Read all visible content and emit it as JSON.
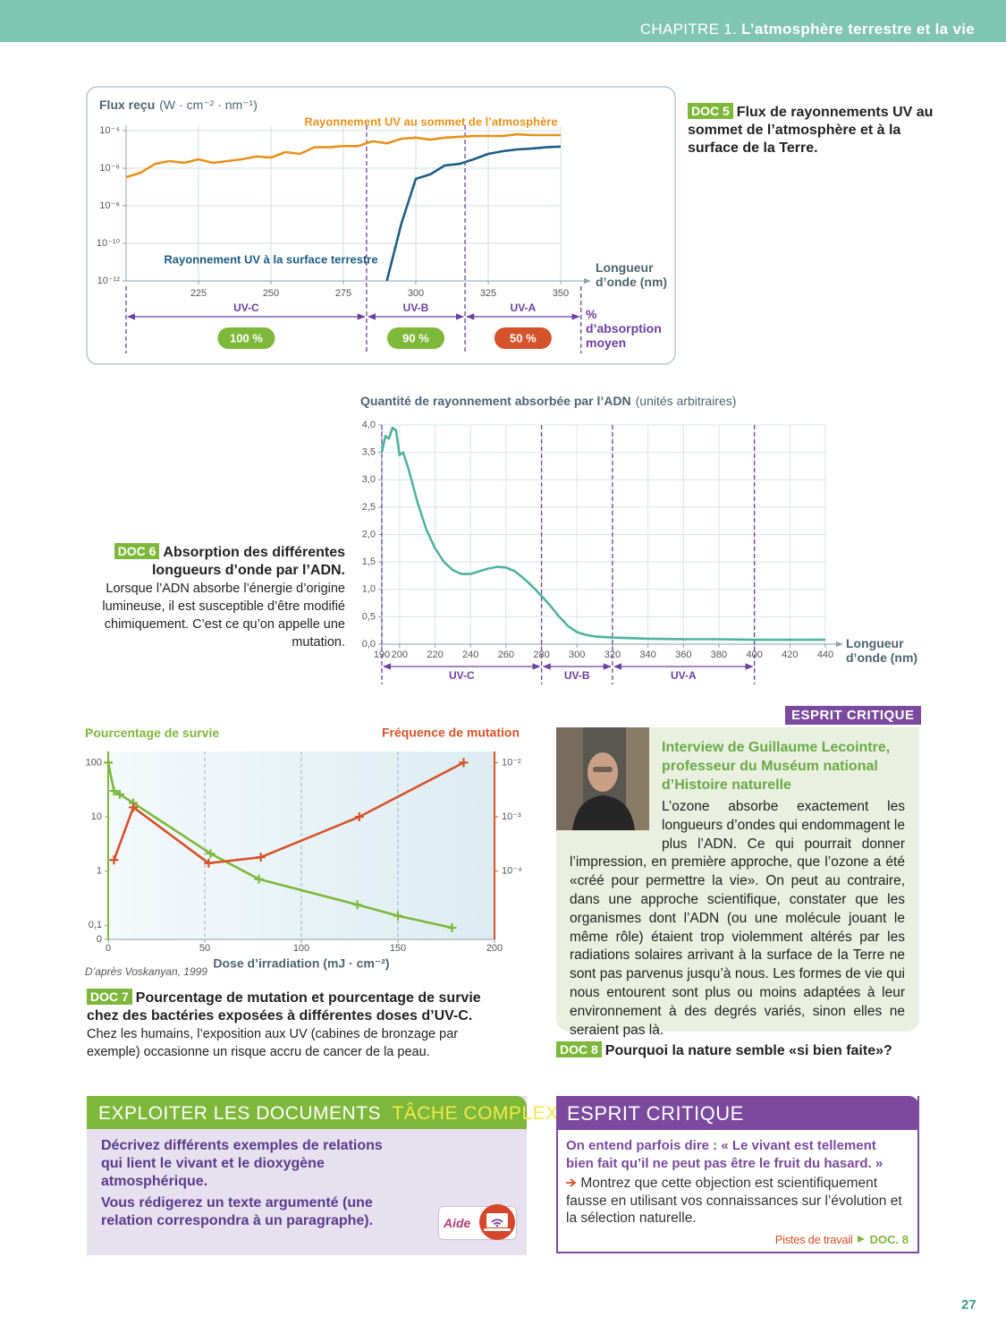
{
  "header": {
    "chapter": "CHAPITRE 1.",
    "title": "L’atmosphère terrestre et la vie"
  },
  "chart_data": [
    {
      "type": "line",
      "y_label": "Flux reçu",
      "y_unit": "(W · cm⁻² · nm⁻¹)",
      "x_label": "Longueur d’onde (nm)",
      "xlim": [
        200,
        350
      ],
      "xticks": [
        225,
        250,
        275,
        300,
        325,
        350
      ],
      "ylog": true,
      "ylim": [
        1e-12,
        0.0001
      ],
      "yticks": [
        {
          "value": 0.0001,
          "label": "10⁻⁴"
        },
        {
          "value": 1e-06,
          "label": "10⁻⁶"
        },
        {
          "value": 1e-08,
          "label": "10⁻⁸"
        },
        {
          "value": 1e-10,
          "label": "10⁻¹⁰"
        },
        {
          "value": 1e-12,
          "label": "10⁻¹²"
        }
      ],
      "grid": true,
      "series": [
        {
          "name": "Rayonnement UV au sommet de l’atmosphère",
          "color": "#e8921c",
          "x": [
            200,
            205,
            210,
            215,
            220,
            225,
            230,
            235,
            240,
            245,
            250,
            255,
            260,
            265,
            270,
            275,
            280,
            285,
            290,
            295,
            300,
            305,
            310,
            315,
            320,
            325,
            330,
            335,
            340,
            345,
            350
          ],
          "values": [
            3.3e-07,
            5.8e-07,
            1.7e-06,
            2.4e-06,
            1.9e-06,
            3e-06,
            1.9e-06,
            2.4e-06,
            3e-06,
            4.2e-06,
            3.7e-06,
            7.2e-06,
            5.8e-06,
            1.3e-05,
            1.3e-05,
            1.5e-05,
            1.5e-05,
            2.7e-05,
            2.1e-05,
            3.7e-05,
            4.2e-05,
            3.3e-05,
            4.2e-05,
            4.7e-05,
            5.2e-05,
            5.2e-05,
            5.2e-05,
            6.4e-05,
            5.8e-05,
            5.8e-05,
            5.8e-05
          ]
        },
        {
          "name": "Rayonnement UV à la surface terrestre",
          "color": "#1d5d85",
          "x": [
            290,
            295,
            300,
            305,
            310,
            315,
            320,
            325,
            330,
            335,
            340,
            345,
            350
          ],
          "values": [
            1e-12,
            1.1e-09,
            2.7e-07,
            4.7e-07,
            1.4e-06,
            1.7e-06,
            3e-06,
            5.8e-06,
            8e-06,
            1e-05,
            1.1e-05,
            1.3e-05,
            1.4e-05
          ]
        }
      ],
      "band_color": "#6d3f9e",
      "bands": [
        {
          "name": "UV-C",
          "from": 200,
          "to": 283,
          "absorption": "100 %",
          "color": "#7db83a"
        },
        {
          "name": "UV-B",
          "from": 283,
          "to": 317,
          "absorption": "90 %",
          "color": "#7db83a"
        },
        {
          "name": "UV-A",
          "from": 317,
          "to": 357,
          "absorption": "50 %",
          "color": "#d6522a"
        }
      ],
      "absorption_label": "% d’absorption moyen"
    },
    {
      "type": "line",
      "title": "Quantité de rayonnement absorbée par l’ADN",
      "title_unit": "(unités arbitraires)",
      "x_label": "Longueur d’onde (nm)",
      "xlim": [
        190,
        440
      ],
      "xticks": [
        190,
        200,
        220,
        240,
        260,
        280,
        300,
        320,
        340,
        360,
        380,
        400,
        420,
        440
      ],
      "ylim": [
        0,
        4
      ],
      "yticks": [
        {
          "value": 0,
          "label": "0,0"
        },
        {
          "value": 0.5,
          "label": "0,5"
        },
        {
          "value": 1,
          "label": "1,0"
        },
        {
          "value": 1.5,
          "label": "1,5"
        },
        {
          "value": 2,
          "label": "2,0"
        },
        {
          "value": 2.5,
          "label": "2,5"
        },
        {
          "value": 3,
          "label": "3,0"
        },
        {
          "value": 3.5,
          "label": "3,5"
        },
        {
          "value": 4,
          "label": "4,0"
        }
      ],
      "grid": true,
      "series": [
        {
          "color": "#4fb3a0",
          "x": [
            190,
            192,
            194,
            196,
            198,
            200,
            202,
            205,
            210,
            215,
            220,
            225,
            230,
            235,
            240,
            245,
            250,
            255,
            260,
            265,
            270,
            275,
            280,
            285,
            290,
            295,
            300,
            305,
            310,
            320,
            340,
            360,
            380,
            400,
            420,
            440
          ],
          "values": [
            3.5,
            3.8,
            3.75,
            3.95,
            3.9,
            3.45,
            3.5,
            3.2,
            2.6,
            2.1,
            1.75,
            1.5,
            1.35,
            1.28,
            1.28,
            1.33,
            1.38,
            1.41,
            1.4,
            1.33,
            1.2,
            1.05,
            0.88,
            0.7,
            0.5,
            0.33,
            0.22,
            0.17,
            0.14,
            0.12,
            0.1,
            0.09,
            0.09,
            0.08,
            0.08,
            0.08
          ]
        }
      ],
      "band_color": "#6d3f9e",
      "bands": [
        {
          "name": "UV-C",
          "from": 190,
          "to": 280
        },
        {
          "name": "UV-B",
          "from": 280,
          "to": 320
        },
        {
          "name": "UV-A",
          "from": 320,
          "to": 400
        }
      ]
    },
    {
      "type": "line",
      "y_label": "Pourcentage de survie",
      "y2_label": "Fréquence de mutation",
      "x_label": "Dose d’irradiation (mJ · cm⁻²)",
      "source": "D’après Voskanyan, 1999",
      "xlim": [
        0,
        200
      ],
      "xticks": [
        0,
        50,
        100,
        150,
        200
      ],
      "ylog": true,
      "ylim": [
        0.055,
        160
      ],
      "yticks": [
        100,
        10,
        1,
        {
          "value": 0.1,
          "label": "0,1"
        },
        {
          "value": 0.055,
          "label": "0"
        }
      ],
      "y2log": true,
      "y2lim": [
        5.5e-06,
        0.016
      ],
      "y2ticks": [
        {
          "value": 0.01,
          "label": "10⁻²"
        },
        {
          "value": 0.001,
          "label": "10⁻³"
        },
        {
          "value": 0.0001,
          "label": "10⁻⁴"
        }
      ],
      "grid": "x",
      "markers": true,
      "series": [
        {
          "color": "#7db83a",
          "x": [
            0,
            3,
            6,
            13,
            53,
            78,
            129,
            150,
            178
          ],
          "values": [
            100,
            30,
            26,
            18,
            2.1,
            0.71,
            0.24,
            0.15,
            0.09
          ]
        },
        {
          "color": "#d6522a",
          "axis": "y2",
          "x": [
            3,
            13,
            52,
            79,
            130,
            184
          ],
          "values": [
            0.00016,
            0.0015,
            0.00014,
            0.00018,
            0.001,
            0.01
          ]
        }
      ]
    }
  ],
  "doc5": {
    "tag": "DOC 5",
    "title": "Flux de rayonnements UV au sommet de l’atmosphère et à la surface de la Terre."
  },
  "doc6": {
    "tag": "DOC 6",
    "title": "Absorption des différentes longueurs d’onde par l’ADN.",
    "text": "Lorsque l’ADN absorbe l’énergie d’origine lumineuse, il est susceptible d’être modifié chimiquement. C’est ce qu’on appelle une mutation."
  },
  "doc7": {
    "tag": "DOC 7",
    "title": "Pourcentage de mutation et pourcentage de survie chez des bactéries exposées à différentes doses d’UV-C.",
    "text": "Chez les humains, l’exposition aux UV (cabines de bronzage par exemple) occasionne un risque accru de cancer de la peau."
  },
  "doc8": {
    "label": "ESPRIT CRITIQUE",
    "heading": "Interview de Guillaume Lecointre, professeur du Muséum national d’Histoire naturelle",
    "text": "L’ozone absorbe exactement les longueurs d’ondes qui endommagent le plus l’ADN. Ce qui pourrait donner l’impression, en première approche, que l’ozone a été «créé pour permettre la vie». On peut au contraire, dans une approche scientifique, constater que les organismes dont l’ADN (ou une molécule jouant le même rôle) étaient trop violemment altérés par les radiations solaires arrivant à la surface de la Terre ne sont pas parvenus jusqu’à nous. Les formes de vie qui nous entourent sont plus ou moins adaptées à leur environnement à des degrés variés, sinon elles ne seraient pas là.",
    "tag": "DOC 8",
    "title": "Pourquoi la nature semble «si bien faite»?"
  },
  "exploit": {
    "heading": "EXPLOITER LES DOCUMENTS",
    "subheading": "TÂCHE COMPLEXE",
    "paragraphs": [
      "Décrivez différents exemples de relations qui lient le vivant et le dioxygène atmosphérique.",
      "Vous rédigerez un texte argumenté (une relation correspondra à un paragraphe)."
    ],
    "help": "Aide"
  },
  "critique": {
    "heading": "ESPRIT CRITIQUE",
    "quote": "On entend parfois dire : « Le vivant est tellement bien fait qu’il ne peut pas être le fruit du hasard. »",
    "instruction": "Montrez que cette objection est scientifiquement fausse en utilisant vos connaissances sur l’évolution et la sélection naturelle.",
    "hint": "Pistes de travail",
    "hint_ref": "DOC. 8"
  },
  "page_number": "27"
}
